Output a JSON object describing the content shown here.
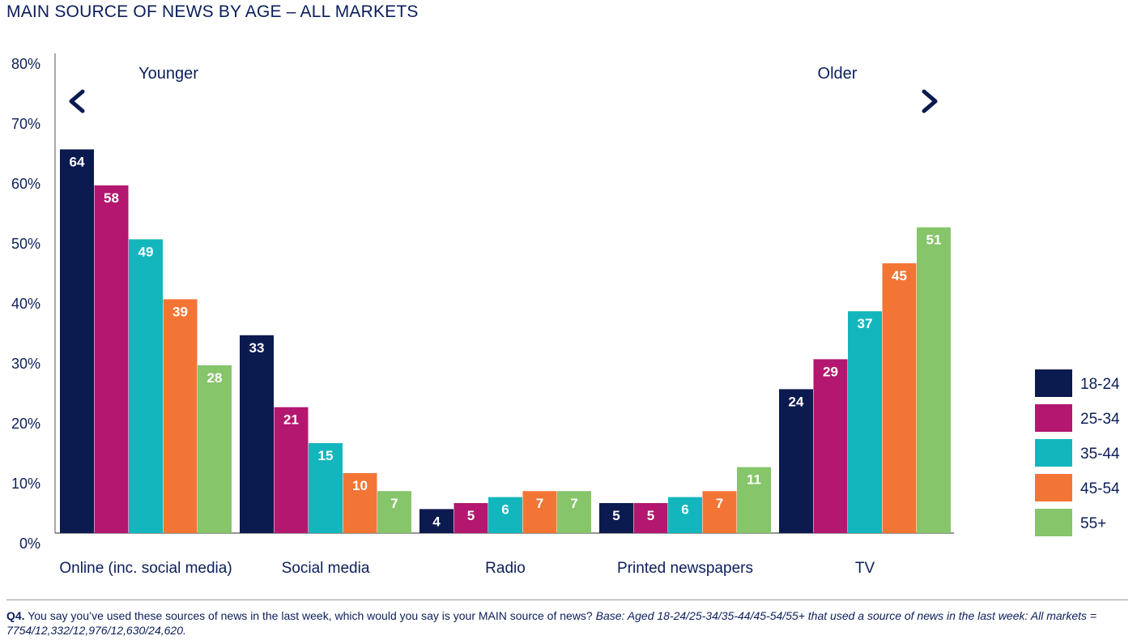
{
  "title": "MAIN SOURCE OF NEWS BY AGE – ALL MARKETS",
  "annotations": {
    "younger": "Younger",
    "older": "Older"
  },
  "footnote": {
    "q_label": "Q4.",
    "question": " You say you’ve used these sources of news in the last week, which would you say is your MAIN source of news? ",
    "base": "Base: Aged 18-24/25-34/35-44/45-54/55+ that used a source of news in the last week: All markets = 7754/12,332/12,976/12,630/24,620."
  },
  "colors": {
    "navy": "#0b1a4f",
    "magenta": "#b3176f",
    "teal": "#14b6bd",
    "orange": "#f37535",
    "green": "#86c56a",
    "text": "#0b1e5b"
  },
  "chart_data": {
    "type": "bar",
    "title": "MAIN SOURCE OF NEWS BY AGE – ALL MARKETS",
    "xlabel": "",
    "ylabel": "",
    "ylim": [
      0,
      80
    ],
    "y_ticks": [
      "0%",
      "10%",
      "20%",
      "30%",
      "40%",
      "50%",
      "60%",
      "70%",
      "80%"
    ],
    "categories": [
      "Online (inc. social media)",
      "Social media",
      "Radio",
      "Printed newspapers",
      "TV"
    ],
    "legend_position": "right",
    "grid": false,
    "series": [
      {
        "name": "18-24",
        "color": "#0b1a4f",
        "values": [
          64,
          33,
          4,
          5,
          24
        ]
      },
      {
        "name": "25-34",
        "color": "#b3176f",
        "values": [
          58,
          21,
          5,
          5,
          29
        ]
      },
      {
        "name": "35-44",
        "color": "#14b6bd",
        "values": [
          49,
          15,
          6,
          6,
          37
        ]
      },
      {
        "name": "45-54",
        "color": "#f37535",
        "values": [
          39,
          10,
          7,
          7,
          45
        ]
      },
      {
        "name": "55+",
        "color": "#86c56a",
        "values": [
          28,
          7,
          7,
          11,
          51
        ]
      }
    ]
  }
}
